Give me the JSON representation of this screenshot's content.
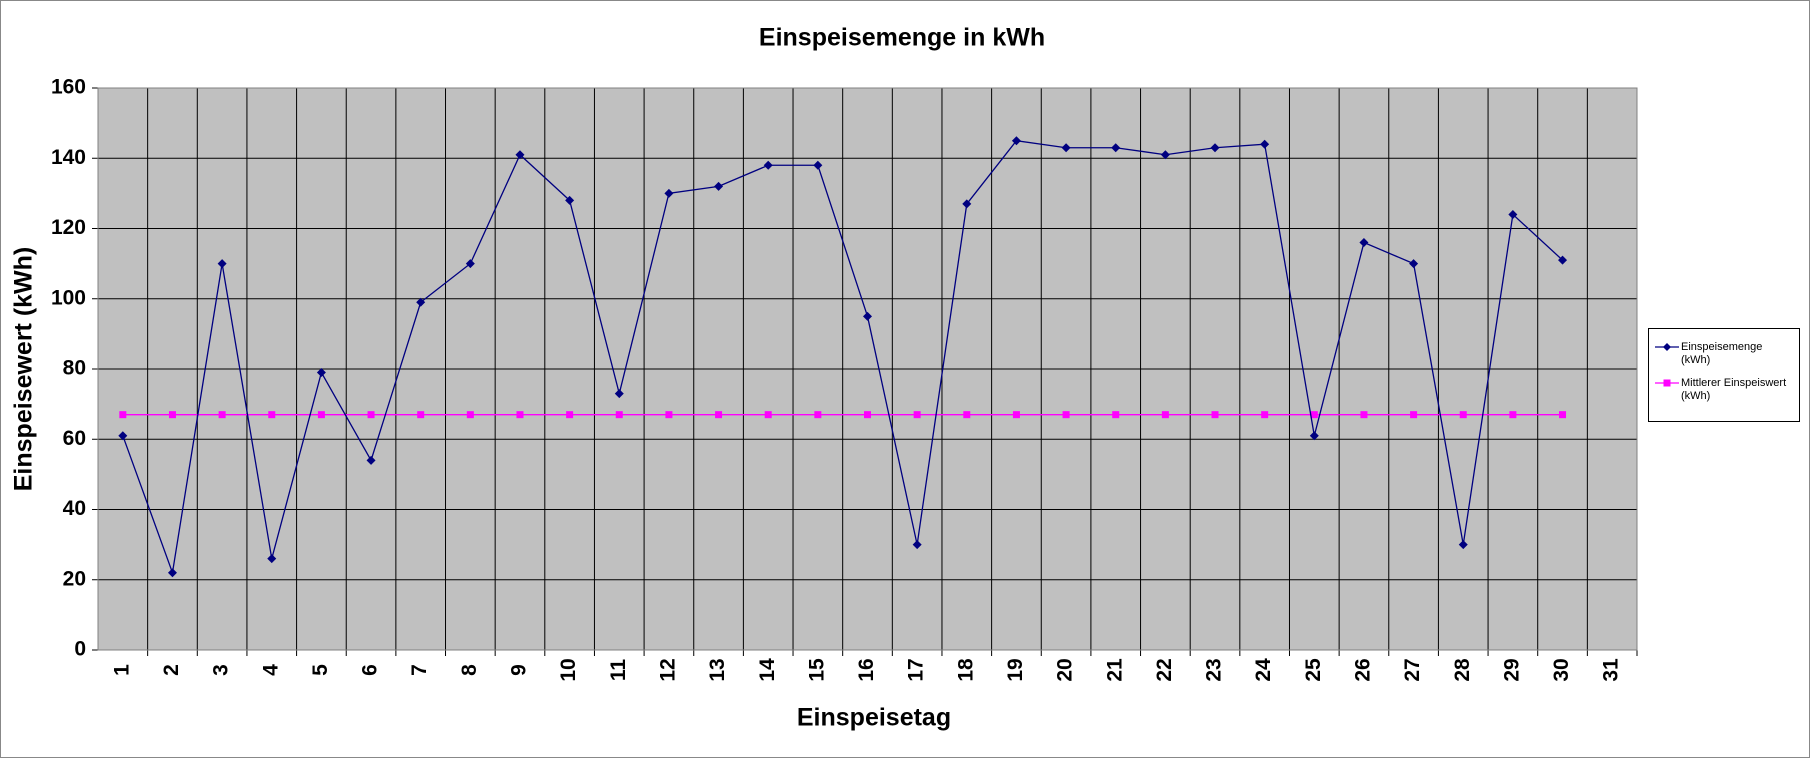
{
  "chart_data": {
    "type": "line",
    "title": "Einspeisemenge in kWh",
    "x_label": "Einspeisetag",
    "y_label": "Einspeisewert  (kWh)",
    "categories": [
      "1",
      "2",
      "3",
      "4",
      "5",
      "6",
      "7",
      "8",
      "9",
      "10",
      "11",
      "12",
      "13",
      "14",
      "15",
      "16",
      "17",
      "18",
      "19",
      "20",
      "21",
      "22",
      "23",
      "24",
      "25",
      "26",
      "27",
      "28",
      "29",
      "30",
      "31"
    ],
    "series": [
      {
        "name": "Einspeisemenge (kWh)",
        "color": "#000080",
        "marker": "diamond",
        "values": [
          61,
          22,
          110,
          26,
          79,
          54,
          99,
          110,
          141,
          128,
          73,
          130,
          132,
          138,
          138,
          95,
          30,
          127,
          145,
          143,
          143,
          141,
          143,
          144,
          61,
          116,
          110,
          30,
          124,
          111,
          null
        ]
      },
      {
        "name": "Mittlerer Einspeiswert (kWh)",
        "color": "#ff00ff",
        "marker": "square",
        "values": [
          67,
          67,
          67,
          67,
          67,
          67,
          67,
          67,
          67,
          67,
          67,
          67,
          67,
          67,
          67,
          67,
          67,
          67,
          67,
          67,
          67,
          67,
          67,
          67,
          67,
          67,
          67,
          67,
          67,
          67,
          null
        ]
      }
    ],
    "ylim": [
      0,
      160
    ],
    "yticks": [
      0,
      20,
      40,
      60,
      80,
      100,
      120,
      140,
      160
    ],
    "grid": true,
    "legend": "right",
    "plot_background": "#c0c0c0"
  }
}
